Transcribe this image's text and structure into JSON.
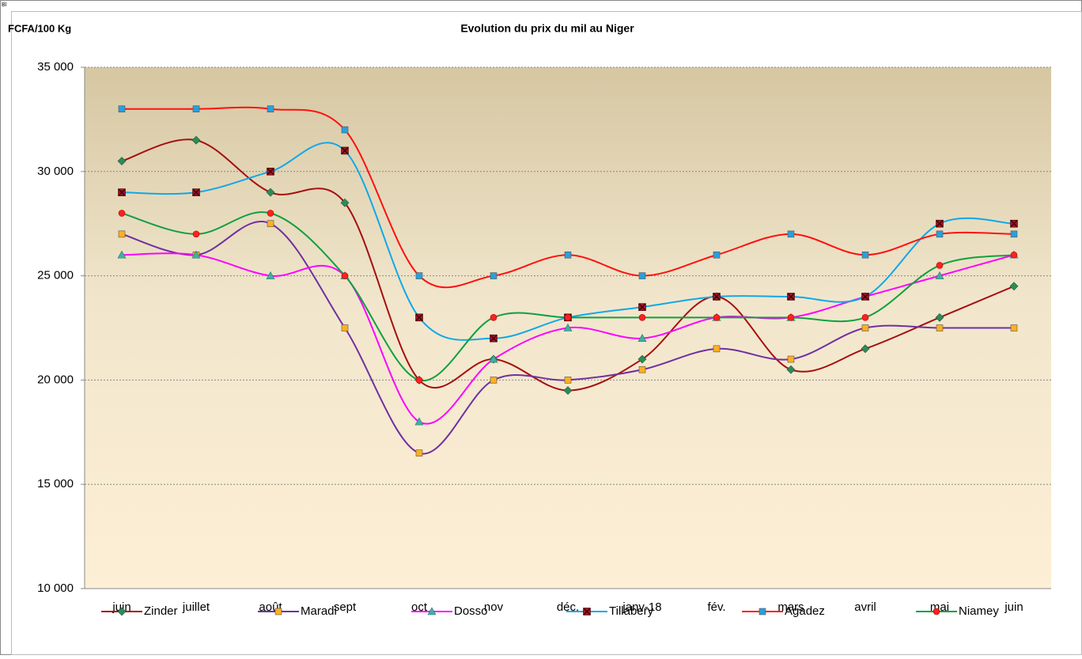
{
  "chart_data": {
    "type": "line",
    "corner_label": "Bl",
    "title": "Evolution du prix du mil au Niger",
    "y_label": "FCFA/100 Kg",
    "categories": [
      "juin",
      "juillet",
      "août",
      "sept",
      "oct",
      "nov",
      "déc.",
      "janv-18",
      "fév.",
      "mars",
      "avril",
      "mai",
      "juin"
    ],
    "ylim": [
      10000,
      35000
    ],
    "yticks": [
      {
        "value": 10000,
        "label": "10 000"
      },
      {
        "value": 15000,
        "label": "15 000"
      },
      {
        "value": 20000,
        "label": "20 000"
      },
      {
        "value": 25000,
        "label": "25 000"
      },
      {
        "value": 30000,
        "label": "30 000"
      },
      {
        "value": 35000,
        "label": "35 000"
      }
    ],
    "grid": true,
    "smooth": true,
    "legend": "bottom",
    "series": [
      {
        "name": "Zinder",
        "color": "#a50f0f",
        "marker": "diamond",
        "marker_color": "#2e8b57",
        "values": [
          30500,
          31500,
          29000,
          28500,
          20000,
          21000,
          19500,
          21000,
          24000,
          20500,
          21500,
          23000,
          24500
        ]
      },
      {
        "name": "Maradi",
        "color": "#7030a0",
        "marker": "square",
        "marker_color": "#ffb020",
        "values": [
          27000,
          26000,
          27500,
          22500,
          16500,
          20000,
          20000,
          20500,
          21500,
          21000,
          22500,
          22500,
          22500
        ]
      },
      {
        "name": "Dosso",
        "color": "#ff00ff",
        "marker": "triangle",
        "marker_color": "#40b0a0",
        "values": [
          26000,
          26000,
          25000,
          25000,
          18000,
          21000,
          22500,
          22000,
          23000,
          23000,
          24000,
          25000,
          26000
        ]
      },
      {
        "name": "Tillabery",
        "color": "#10a8e8",
        "marker": "xsquare",
        "marker_color": "#a01428",
        "values": [
          29000,
          29000,
          30000,
          31000,
          23000,
          22000,
          23000,
          23500,
          24000,
          24000,
          24000,
          27500,
          27500
        ]
      },
      {
        "name": "Agadez",
        "color": "#ff1010",
        "marker": "square",
        "marker_color": "#28a0dc",
        "values": [
          33000,
          33000,
          33000,
          32000,
          25000,
          25000,
          26000,
          25000,
          26000,
          27000,
          26000,
          27000,
          27000
        ]
      },
      {
        "name": "Niamey",
        "color": "#10a040",
        "marker": "circle",
        "marker_color": "#ff2020",
        "values": [
          28000,
          27000,
          28000,
          25000,
          20000,
          23000,
          23000,
          23000,
          23000,
          23000,
          23000,
          25500,
          26000
        ]
      }
    ]
  }
}
